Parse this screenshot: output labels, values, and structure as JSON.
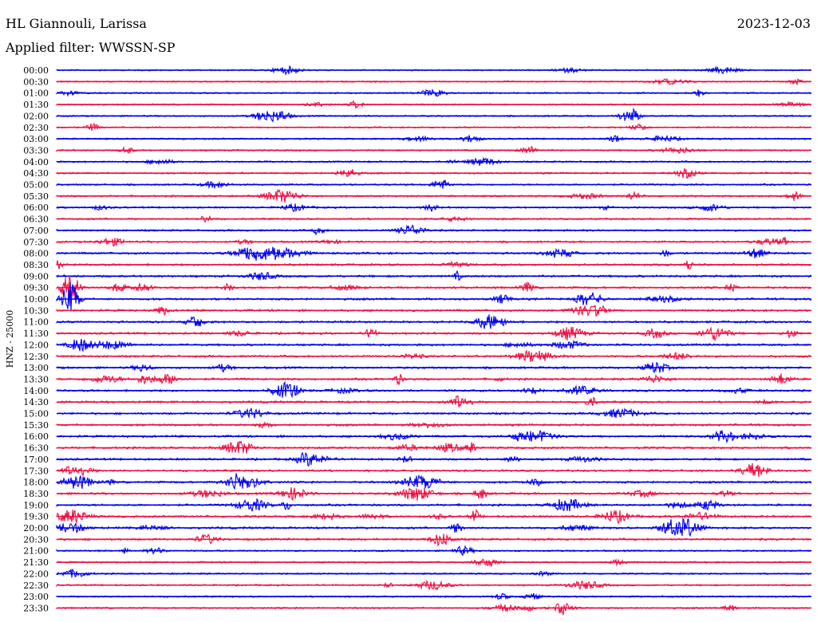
{
  "header": {
    "station": "HL Giannouli, Larissa",
    "date": "2023-12-03",
    "filter": "Applied filter: WWSSN-SP"
  },
  "colors": {
    "even_trace": "#0000ee",
    "odd_trace": "#ee1144",
    "background": "#ffffff",
    "text": "#000000"
  },
  "chart_data": {
    "type": "line",
    "title": "HL Giannouli, Larissa",
    "subtitle": "Applied filter: WWSSN-SP",
    "ylabel": "HNZ - 25000",
    "xlabel": "",
    "rows": [
      "00:00",
      "00:30",
      "01:00",
      "01:30",
      "02:00",
      "02:30",
      "03:00",
      "03:30",
      "04:00",
      "04:30",
      "05:00",
      "05:30",
      "06:00",
      "06:30",
      "07:00",
      "07:30",
      "08:00",
      "08:30",
      "09:00",
      "09:30",
      "10:00",
      "10:30",
      "11:00",
      "11:30",
      "12:00",
      "12:30",
      "13:00",
      "13:30",
      "14:00",
      "14:30",
      "15:00",
      "15:30",
      "16:00",
      "16:30",
      "17:00",
      "17:30",
      "18:00",
      "18:30",
      "19:00",
      "19:30",
      "20:00",
      "20:30",
      "21:00",
      "21:30",
      "22:00",
      "22:30",
      "23:00",
      "23:30"
    ],
    "series": [
      {
        "name": "",
        "values": []
      }
    ]
  }
}
